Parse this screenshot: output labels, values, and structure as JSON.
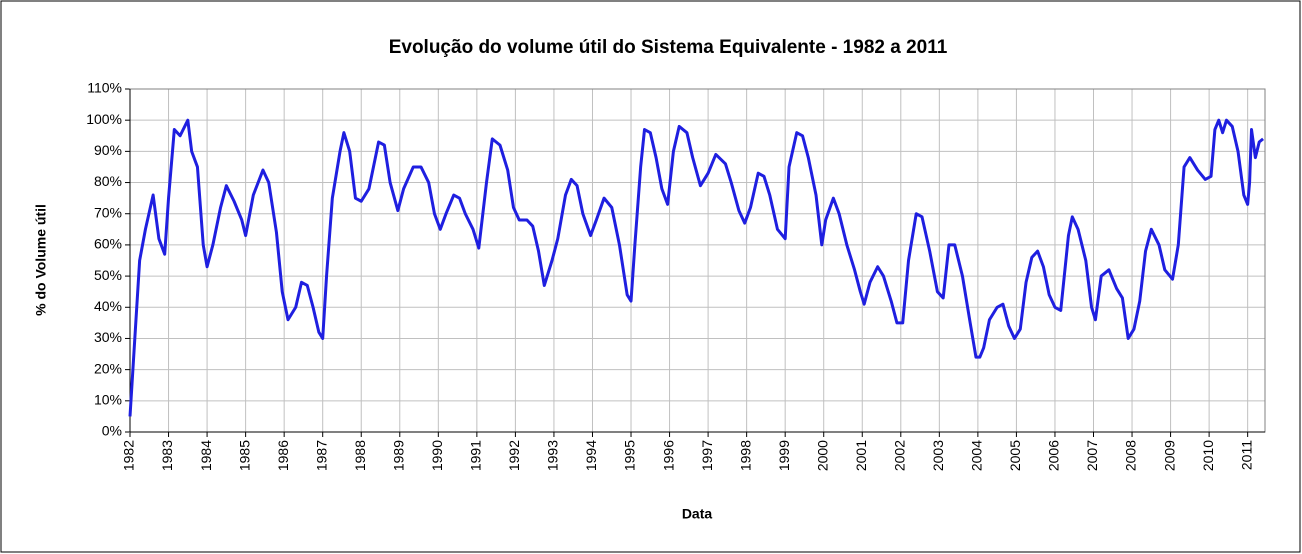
{
  "chart_data": {
    "type": "line",
    "title": "Evolução do volume útil do Sistema Equivalente - 1982 a 2011",
    "x_label": "Data",
    "y_label": "% do Volume útil",
    "xlim": [
      1982,
      2011.45
    ],
    "xticks": [
      1982,
      1983,
      1984,
      1985,
      1986,
      1987,
      1988,
      1989,
      1990,
      1991,
      1992,
      1993,
      1994,
      1995,
      1996,
      1997,
      1998,
      1999,
      2000,
      2001,
      2002,
      2003,
      2004,
      2005,
      2006,
      2007,
      2008,
      2009,
      2010,
      2011
    ],
    "ylim": [
      0,
      110
    ],
    "yticks": [
      {
        "value": 0,
        "label": "0%"
      },
      {
        "value": 10,
        "label": "10%"
      },
      {
        "value": 20,
        "label": "20%"
      },
      {
        "value": 30,
        "label": "30%"
      },
      {
        "value": 40,
        "label": "40%"
      },
      {
        "value": 50,
        "label": "50%"
      },
      {
        "value": 60,
        "label": "60%"
      },
      {
        "value": 70,
        "label": "70%"
      },
      {
        "value": 80,
        "label": "80%"
      },
      {
        "value": 90,
        "label": "90%"
      },
      {
        "value": 100,
        "label": "100%"
      },
      {
        "value": 110,
        "label": "110%"
      }
    ],
    "grid": true,
    "x": [
      1982.0,
      1982.1,
      1982.25,
      1982.4,
      1982.6,
      1982.75,
      1982.9,
      1983.0,
      1983.15,
      1983.3,
      1983.5,
      1983.6,
      1983.75,
      1983.9,
      1984.0,
      1984.15,
      1984.35,
      1984.5,
      1984.7,
      1984.9,
      1985.0,
      1985.2,
      1985.45,
      1985.6,
      1985.8,
      1985.95,
      1986.1,
      1986.3,
      1986.45,
      1986.6,
      1986.75,
      1986.9,
      1987.0,
      1987.1,
      1987.25,
      1987.45,
      1987.55,
      1987.7,
      1987.85,
      1988.0,
      1988.2,
      1988.45,
      1988.6,
      1988.75,
      1988.95,
      1989.1,
      1989.35,
      1989.55,
      1989.75,
      1989.9,
      1990.05,
      1990.2,
      1990.4,
      1990.55,
      1990.7,
      1990.9,
      1991.05,
      1991.25,
      1991.4,
      1991.6,
      1991.8,
      1991.95,
      1992.1,
      1992.3,
      1992.45,
      1992.6,
      1992.75,
      1992.95,
      1993.1,
      1993.3,
      1993.45,
      1993.6,
      1993.75,
      1993.95,
      1994.1,
      1994.3,
      1994.5,
      1994.7,
      1994.9,
      1995.0,
      1995.1,
      1995.25,
      1995.35,
      1995.5,
      1995.65,
      1995.8,
      1995.95,
      1996.1,
      1996.25,
      1996.45,
      1996.6,
      1996.8,
      1997.0,
      1997.2,
      1997.45,
      1997.6,
      1997.8,
      1997.95,
      1998.1,
      1998.3,
      1998.45,
      1998.6,
      1998.8,
      1999.0,
      1999.1,
      1999.3,
      1999.45,
      1999.6,
      1999.8,
      1999.95,
      2000.05,
      2000.25,
      2000.4,
      2000.6,
      2000.8,
      2000.95,
      2001.05,
      2001.2,
      2001.4,
      2001.55,
      2001.75,
      2001.9,
      2002.05,
      2002.2,
      2002.4,
      2002.55,
      2002.75,
      2002.95,
      2003.1,
      2003.25,
      2003.4,
      2003.6,
      2003.8,
      2003.95,
      2004.05,
      2004.15,
      2004.3,
      2004.5,
      2004.65,
      2004.8,
      2004.95,
      2005.1,
      2005.25,
      2005.4,
      2005.55,
      2005.7,
      2005.85,
      2006.0,
      2006.15,
      2006.35,
      2006.45,
      2006.6,
      2006.8,
      2006.95,
      2007.05,
      2007.2,
      2007.4,
      2007.6,
      2007.75,
      2007.9,
      2008.05,
      2008.2,
      2008.35,
      2008.5,
      2008.7,
      2008.85,
      2009.05,
      2009.2,
      2009.35,
      2009.5,
      2009.7,
      2009.9,
      2010.05,
      2010.15,
      2010.25,
      2010.35,
      2010.45,
      2010.6,
      2010.75,
      2010.9,
      2011.0,
      2011.05,
      2011.1,
      2011.2,
      2011.3,
      2011.4
    ],
    "series": [
      {
        "color": "#1f1fe0",
        "values": [
          5,
          25,
          55,
          65,
          76,
          62,
          57,
          75,
          97,
          95,
          100,
          90,
          85,
          60,
          53,
          60,
          72,
          79,
          74,
          68,
          63,
          76,
          84,
          80,
          64,
          45,
          36,
          40,
          48,
          47,
          40,
          32,
          30,
          50,
          75,
          90,
          96,
          90,
          75,
          74,
          78,
          93,
          92,
          80,
          71,
          78,
          85,
          85,
          80,
          70,
          65,
          70,
          76,
          75,
          70,
          65,
          59,
          80,
          94,
          92,
          84,
          72,
          68,
          68,
          66,
          58,
          47,
          55,
          62,
          76,
          81,
          79,
          70,
          63,
          68,
          75,
          72,
          60,
          44,
          42,
          60,
          85,
          97,
          96,
          88,
          78,
          73,
          90,
          98,
          96,
          88,
          79,
          83,
          89,
          86,
          80,
          71,
          67,
          72,
          83,
          82,
          76,
          65,
          62,
          85,
          96,
          95,
          88,
          76,
          60,
          68,
          75,
          70,
          60,
          52,
          45,
          41,
          48,
          53,
          50,
          42,
          35,
          35,
          55,
          70,
          69,
          58,
          45,
          43,
          60,
          60,
          50,
          35,
          24,
          24,
          27,
          36,
          40,
          41,
          34,
          30,
          33,
          48,
          56,
          58,
          53,
          44,
          40,
          39,
          63,
          69,
          65,
          55,
          40,
          36,
          50,
          52,
          46,
          43,
          30,
          33,
          42,
          58,
          65,
          60,
          52,
          49,
          60,
          85,
          88,
          84,
          81,
          82,
          97,
          100,
          96,
          100,
          98,
          90,
          76,
          73,
          80,
          97,
          88,
          93,
          94
        ]
      }
    ]
  }
}
